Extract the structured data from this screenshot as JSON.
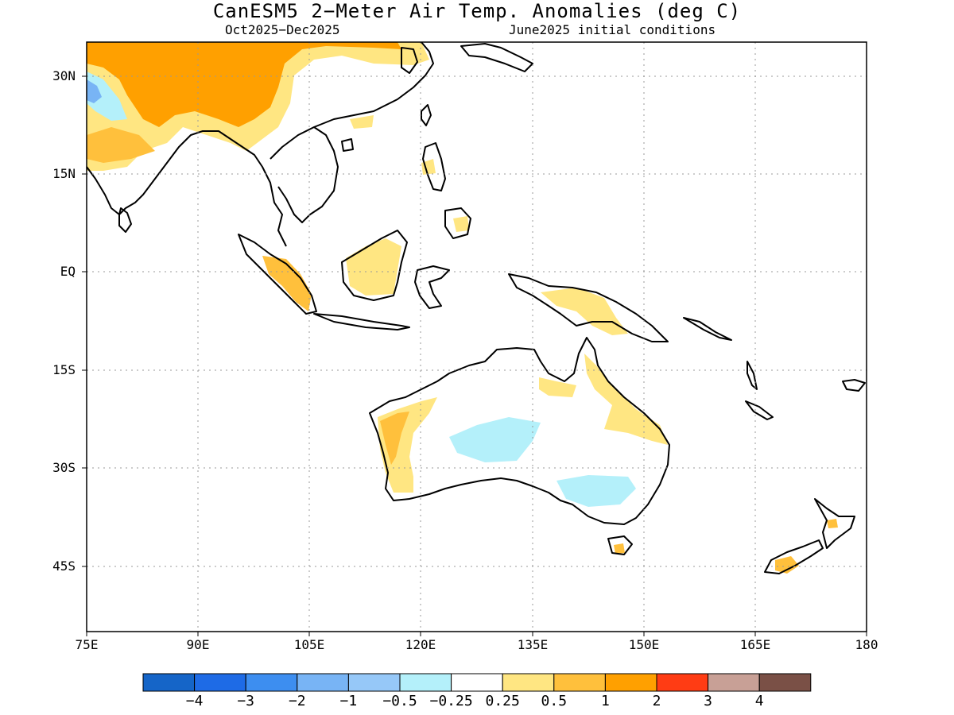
{
  "title": "CanESM5 2−Meter Air Temp. Anomalies (deg C)",
  "subtitle_left": "Oct2025−Dec2025",
  "subtitle_right": "June2025 initial conditions",
  "y_ticks": [
    "30N",
    "15N",
    "EQ",
    "15S",
    "30S",
    "45S"
  ],
  "x_ticks": [
    "75E",
    "90E",
    "105E",
    "120E",
    "135E",
    "150E",
    "165E",
    "180"
  ],
  "colorbar": {
    "colors": [
      "#1565c8",
      "#1e6be6",
      "#3d8ef0",
      "#78b4f5",
      "#96c8f8",
      "#b4f0fa",
      "#ffffff",
      "#ffe682",
      "#ffc03c",
      "#ffa000",
      "#ff3c14",
      "#c8a096",
      "#7a5046"
    ],
    "labels": [
      "−4",
      "−3",
      "−2",
      "−1",
      "−0.5",
      "−0.25",
      "0.25",
      "0.5",
      "1",
      "2",
      "3",
      "4"
    ]
  },
  "anomaly_colors": {
    "light_yellow": "#ffe682",
    "yellow_orange": "#ffc03c",
    "orange": "#ffa000",
    "light_cyan": "#b4f0fa",
    "light_blue": "#96c8f8",
    "mid_blue": "#78b4f5"
  }
}
